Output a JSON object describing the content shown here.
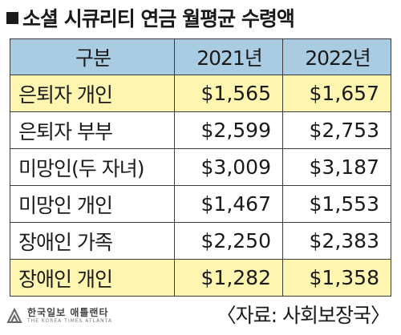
{
  "title": "소셜 시큐리티 연금 월평균 수령액",
  "chart_data": {
    "type": "table",
    "columns": [
      "구분",
      "2021년",
      "2022년"
    ],
    "rows": [
      {
        "category": "은퇴자 개인",
        "v2021": "$1,565",
        "v2022": "$1,657",
        "highlight": true
      },
      {
        "category": "은퇴자 부부",
        "v2021": "$2,599",
        "v2022": "$2,753",
        "highlight": false
      },
      {
        "category": "미망인(두 자녀)",
        "v2021": "$3,009",
        "v2022": "$3,187",
        "highlight": false
      },
      {
        "category": "미망인 개인",
        "v2021": "$1,467",
        "v2022": "$1,553",
        "highlight": false
      },
      {
        "category": "장애인 가족",
        "v2021": "$2,250",
        "v2022": "$2,383",
        "highlight": false
      },
      {
        "category": "장애인 개인",
        "v2021": "$1,282",
        "v2022": "$1,358",
        "highlight": true
      }
    ]
  },
  "source": "〈자료: 사회보장국〉",
  "logo": {
    "name": "한국일보 애틀랜타",
    "sub": "THE KOREA TIMES ATLANTA"
  },
  "colors": {
    "header_bg": "#a9cce3",
    "highlight_bg": "#fdf5b0"
  }
}
